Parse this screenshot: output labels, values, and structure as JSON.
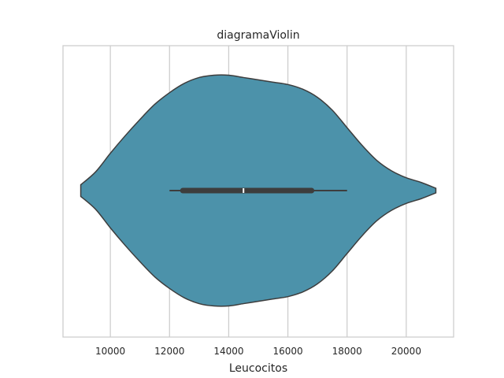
{
  "chart_data": {
    "type": "violin",
    "title": "diagramaViolin",
    "xlabel": "Leucocitos",
    "ylabel": "",
    "xlim": [
      8400,
      21600
    ],
    "grid": true,
    "x_ticks": [
      10000,
      12000,
      14000,
      16000,
      18000,
      20000
    ],
    "x_tick_labels": [
      "10000",
      "12000",
      "14000",
      "16000",
      "18000",
      "20000"
    ],
    "fill_color": "#4c92aa",
    "edge_color": "#3d3d3d",
    "summary": {
      "min": 12000,
      "q1": 12450,
      "median": 14500,
      "q3": 16800,
      "max": 18000
    },
    "density_profile": [
      {
        "x": 9000,
        "h": 0.05
      },
      {
        "x": 9500,
        "h": 0.16
      },
      {
        "x": 10000,
        "h": 0.32
      },
      {
        "x": 10500,
        "h": 0.47
      },
      {
        "x": 11000,
        "h": 0.61
      },
      {
        "x": 11500,
        "h": 0.74
      },
      {
        "x": 12000,
        "h": 0.84
      },
      {
        "x": 12500,
        "h": 0.92
      },
      {
        "x": 13000,
        "h": 0.97
      },
      {
        "x": 13500,
        "h": 0.99
      },
      {
        "x": 14000,
        "h": 0.99
      },
      {
        "x": 14500,
        "h": 0.97
      },
      {
        "x": 15000,
        "h": 0.95
      },
      {
        "x": 15500,
        "h": 0.93
      },
      {
        "x": 16000,
        "h": 0.91
      },
      {
        "x": 16500,
        "h": 0.87
      },
      {
        "x": 17000,
        "h": 0.8
      },
      {
        "x": 17500,
        "h": 0.69
      },
      {
        "x": 18000,
        "h": 0.54
      },
      {
        "x": 18500,
        "h": 0.39
      },
      {
        "x": 19000,
        "h": 0.26
      },
      {
        "x": 19500,
        "h": 0.17
      },
      {
        "x": 20000,
        "h": 0.11
      },
      {
        "x": 20500,
        "h": 0.07
      },
      {
        "x": 21000,
        "h": 0.02
      }
    ]
  }
}
